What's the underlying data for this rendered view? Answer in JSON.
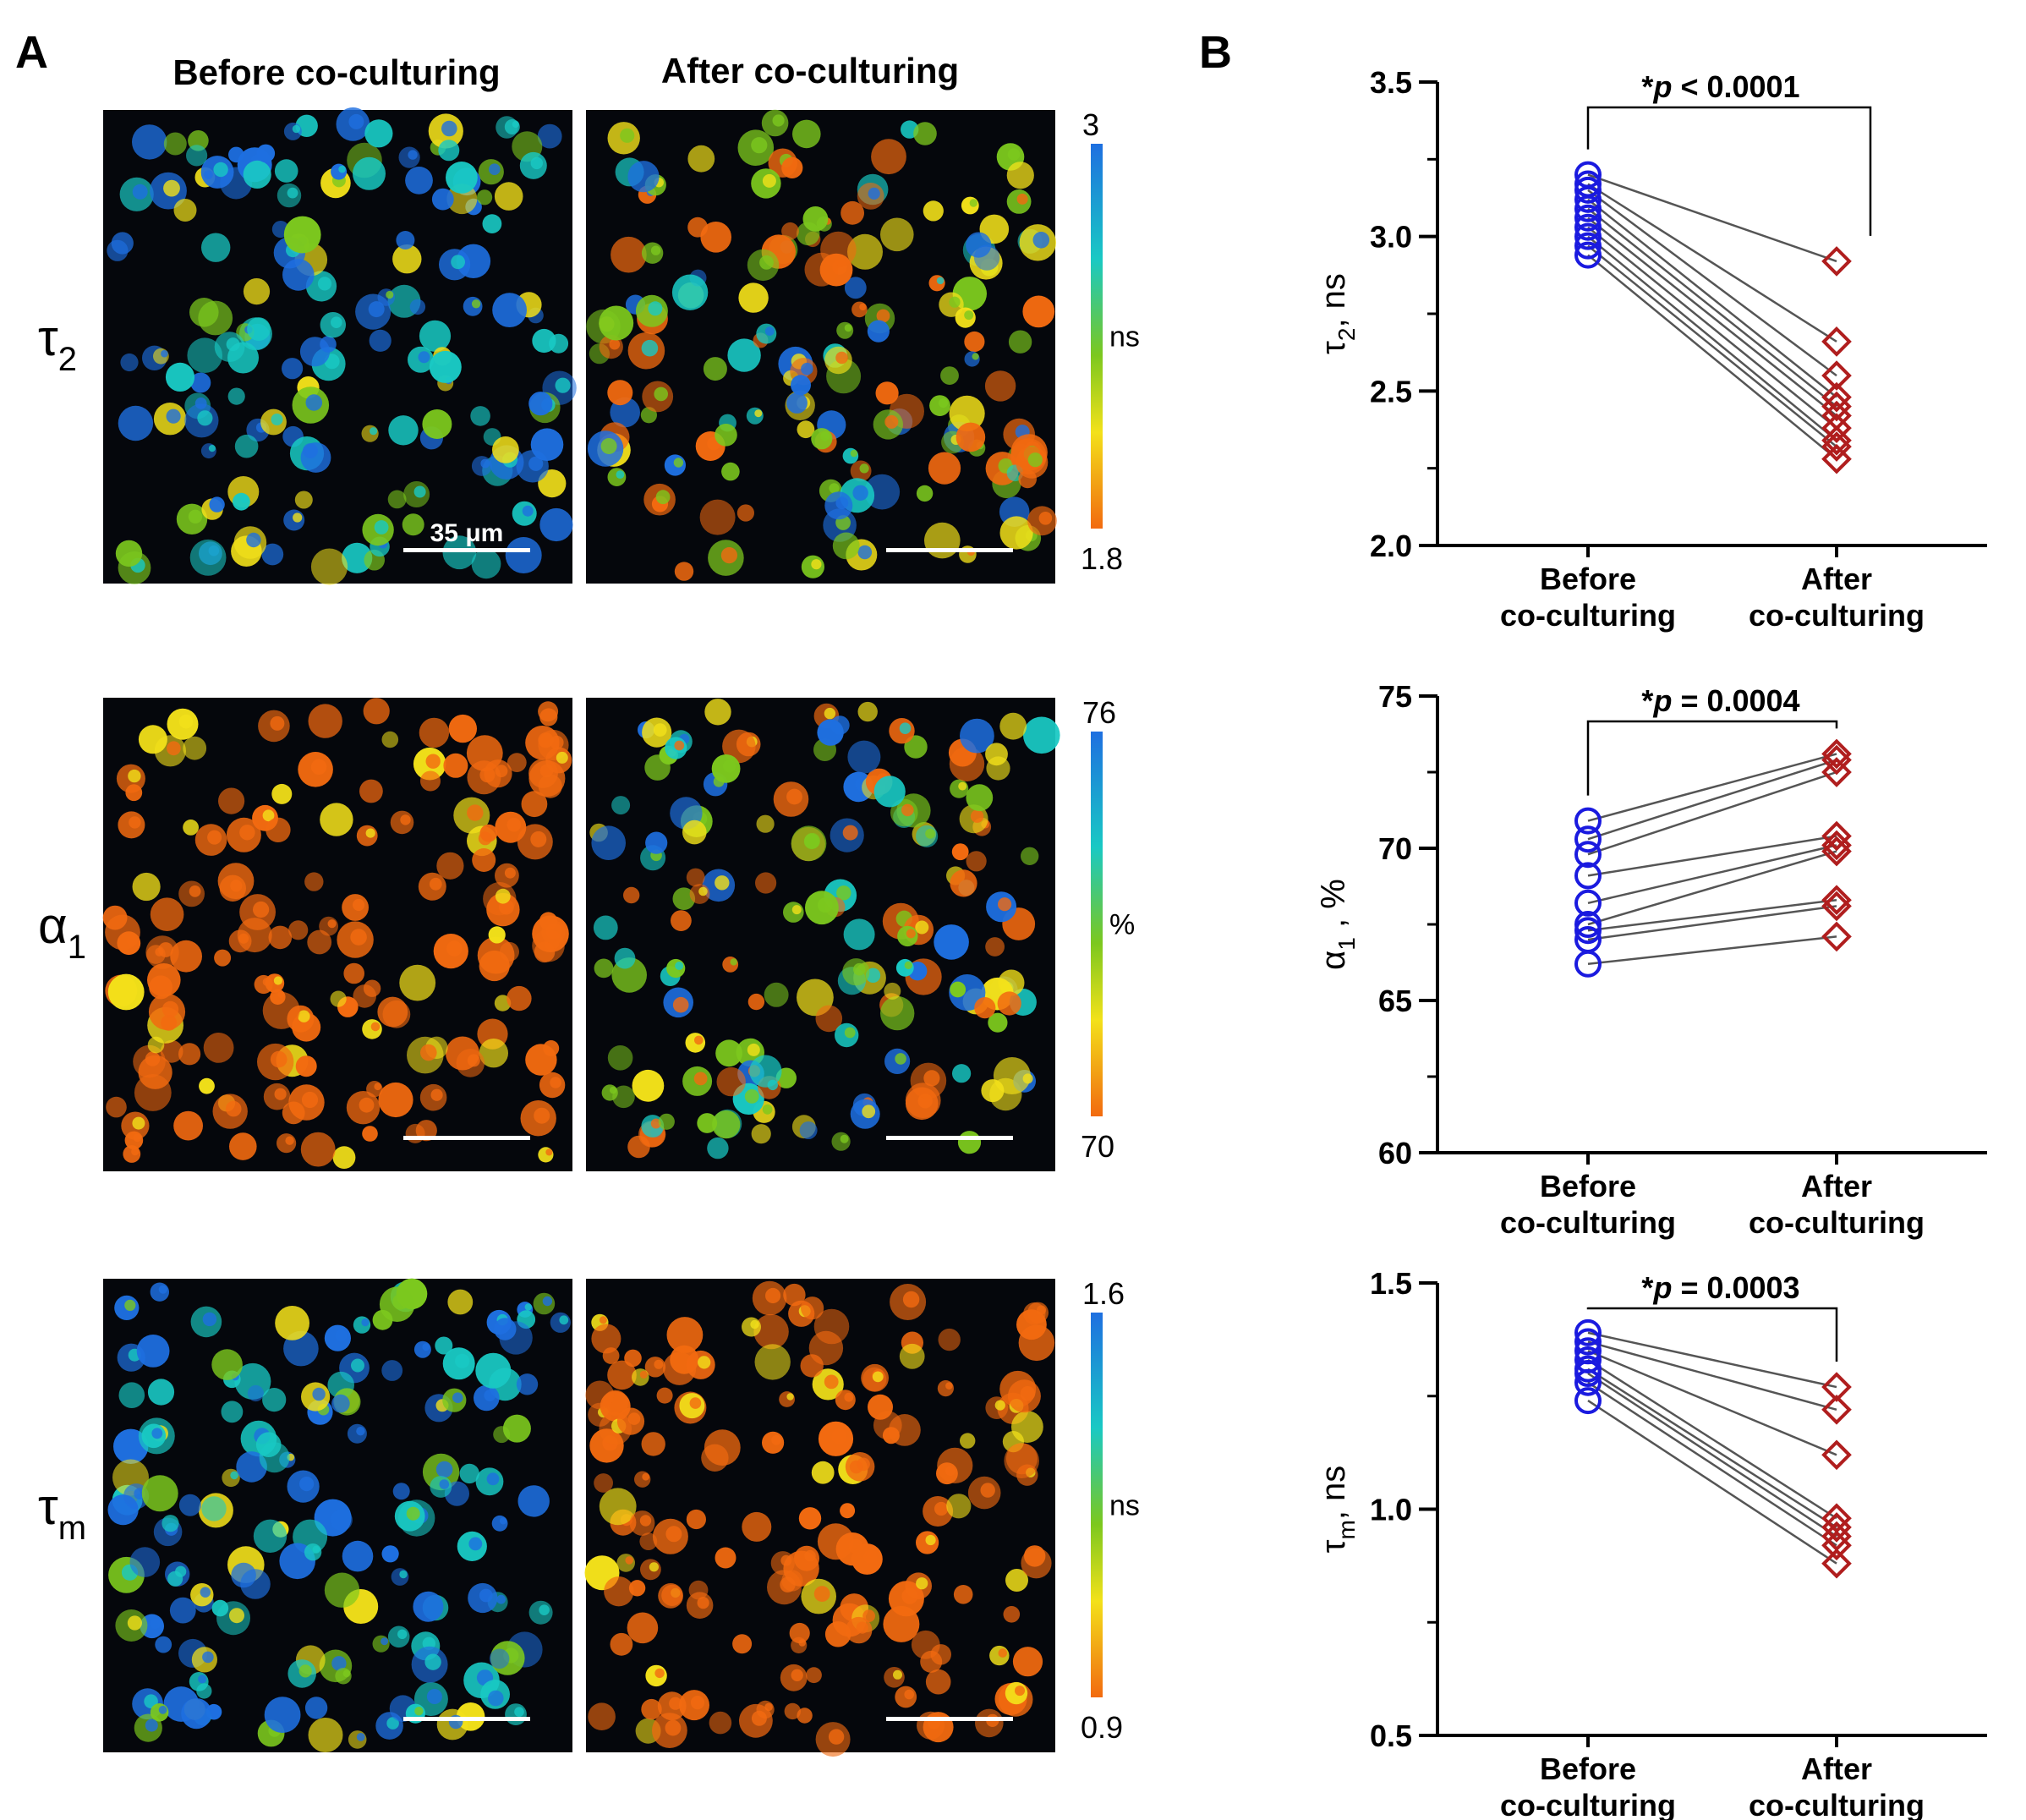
{
  "panel_a": {
    "label": "A",
    "header_before": "Before co-culturing",
    "header_after": "After co-culturing",
    "scale_bar_text": "35 μm",
    "rows": [
      {
        "symbol": "τ",
        "subscript": "2",
        "scale_top": "3",
        "scale_unit": "ns",
        "scale_bottom": "1.8",
        "before_tone": "blue",
        "after_tone": "mixed"
      },
      {
        "symbol": "α",
        "subscript": "1",
        "scale_top": "76",
        "scale_unit": "%",
        "scale_bottom": "70",
        "before_tone": "orange",
        "after_tone": "mixed"
      },
      {
        "symbol": "τ",
        "subscript": "m",
        "scale_top": "1.6",
        "scale_unit": "ns",
        "scale_bottom": "0.9",
        "before_tone": "blue",
        "after_tone": "orange"
      }
    ],
    "colors": {
      "blue": "#1e6fe0",
      "cyan": "#19c9c4",
      "green": "#7cc81e",
      "yellow": "#f3e11a",
      "orange": "#f26a10",
      "background": "#05070c"
    }
  },
  "panel_b": {
    "label": "B",
    "x_label_line1_before": "Before",
    "x_label_line2_before": "co-culturing",
    "x_label_line1_after": "After",
    "x_label_line2_after": "co-culturing",
    "before_color": "#1a1adf",
    "after_color": "#b01e1e"
  },
  "chart_data": [
    {
      "type": "scatter",
      "title": "",
      "ylabel_symbol": "τ",
      "ylabel_sub": "2",
      "ylabel_unit": ", ns",
      "ylim": [
        2.0,
        3.5
      ],
      "yticks": [
        "2.0",
        "2.5",
        "3.0",
        "3.5"
      ],
      "categories": [
        "Before co-culturing",
        "After co-culturing"
      ],
      "annotation": {
        "star": "*",
        "p": "p",
        "rest": " < 0.0001"
      },
      "pairs": [
        [
          3.2,
          2.92
        ],
        [
          3.17,
          2.66
        ],
        [
          3.15,
          2.55
        ],
        [
          3.12,
          2.48
        ],
        [
          3.09,
          2.45
        ],
        [
          3.06,
          2.42
        ],
        [
          3.03,
          2.38
        ],
        [
          3.0,
          2.34
        ],
        [
          2.97,
          2.32
        ],
        [
          2.94,
          2.28
        ]
      ]
    },
    {
      "type": "scatter",
      "title": "",
      "ylabel_symbol": "α",
      "ylabel_sub": "1",
      "ylabel_unit": " , %",
      "ylim": [
        60,
        75
      ],
      "yticks": [
        "60",
        "65",
        "70",
        "75"
      ],
      "categories": [
        "Before co-culturing",
        "After co-culturing"
      ],
      "annotation": {
        "star": "*",
        "p": "p",
        "rest": " = 0.0004"
      },
      "pairs": [
        [
          70.9,
          73.1
        ],
        [
          70.3,
          72.9
        ],
        [
          69.8,
          72.5
        ],
        [
          69.1,
          70.4
        ],
        [
          68.2,
          70.1
        ],
        [
          67.5,
          69.9
        ],
        [
          67.3,
          68.3
        ],
        [
          67.0,
          68.1
        ],
        [
          66.2,
          67.1
        ]
      ]
    },
    {
      "type": "scatter",
      "title": "",
      "ylabel_symbol": "τ",
      "ylabel_sub": "m",
      "ylabel_unit": ", ns",
      "ylim": [
        0.5,
        1.5
      ],
      "yticks": [
        "0.5",
        "1.0",
        "1.5"
      ],
      "categories": [
        "Before co-culturing",
        "After co-culturing"
      ],
      "annotation": {
        "star": "*",
        "p": "p",
        "rest": " = 0.0003"
      },
      "pairs": [
        [
          1.39,
          1.27
        ],
        [
          1.37,
          1.22
        ],
        [
          1.35,
          1.12
        ],
        [
          1.33,
          0.98
        ],
        [
          1.31,
          0.96
        ],
        [
          1.3,
          0.94
        ],
        [
          1.28,
          0.92
        ],
        [
          1.24,
          0.88
        ]
      ]
    }
  ]
}
